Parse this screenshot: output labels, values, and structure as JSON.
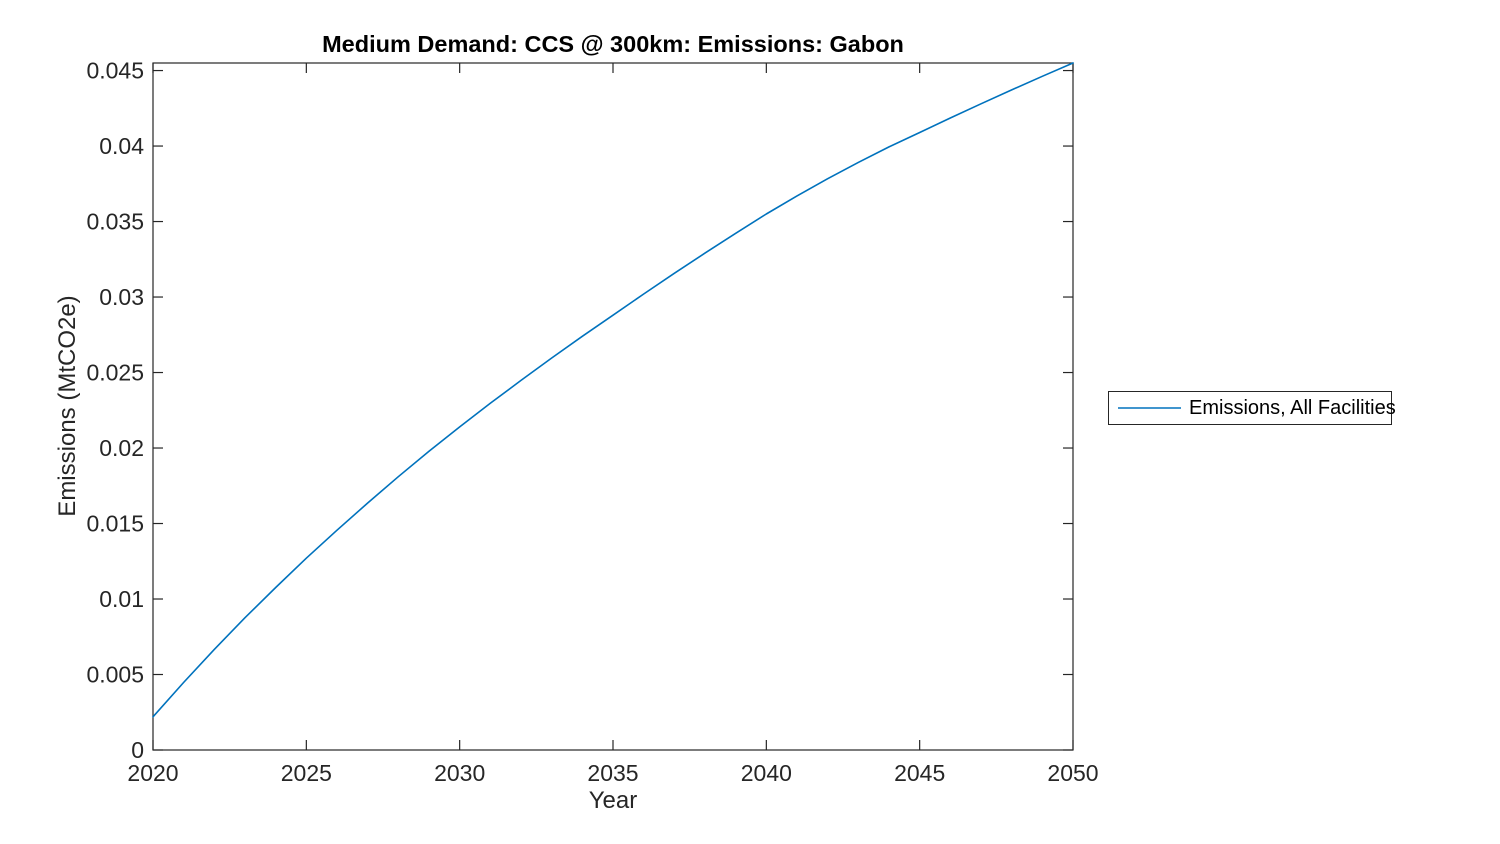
{
  "colors": {
    "line": "#0072BD",
    "axis": "#262626",
    "title": "#000000",
    "background": "#ffffff"
  },
  "chart_data": {
    "type": "line",
    "title": "Medium Demand: CCS @ 300km: Emissions: Gabon",
    "xlabel": "Year",
    "ylabel": "Emissions (MtCO2e)",
    "xlim": [
      2020,
      2050
    ],
    "ylim": [
      0,
      0.0455
    ],
    "grid": false,
    "xticks": [
      2020,
      2025,
      2030,
      2035,
      2040,
      2045,
      2050
    ],
    "xtick_labels": [
      "2020",
      "2025",
      "2030",
      "2035",
      "2040",
      "2045",
      "2050"
    ],
    "yticks": [
      0,
      0.005,
      0.01,
      0.015,
      0.02,
      0.025,
      0.03,
      0.035,
      0.04,
      0.045
    ],
    "ytick_labels": [
      "0",
      "0.005",
      "0.01",
      "0.015",
      "0.02",
      "0.025",
      "0.03",
      "0.035",
      "0.04",
      "0.045"
    ],
    "legend": {
      "position": "right-outside",
      "entries": [
        "Emissions, All Facilities"
      ]
    },
    "series": [
      {
        "name": "Emissions, All Facilities",
        "color": "#0072BD",
        "x": [
          2020,
          2021,
          2022,
          2023,
          2024,
          2025,
          2026,
          2027,
          2028,
          2029,
          2030,
          2031,
          2032,
          2033,
          2034,
          2035,
          2036,
          2037,
          2038,
          2039,
          2040,
          2041,
          2042,
          2043,
          2044,
          2045,
          2046,
          2047,
          2048,
          2049,
          2050
        ],
        "y": [
          0.0022,
          0.00448,
          0.00666,
          0.00876,
          0.01076,
          0.0127,
          0.01456,
          0.01636,
          0.0181,
          0.01978,
          0.0214,
          0.02296,
          0.02448,
          0.02596,
          0.0274,
          0.0288,
          0.0302,
          0.03157,
          0.03291,
          0.03422,
          0.0355,
          0.0367,
          0.03784,
          0.03892,
          0.03994,
          0.0409,
          0.04186,
          0.0428,
          0.04372,
          0.04462,
          0.0455
        ]
      }
    ]
  }
}
